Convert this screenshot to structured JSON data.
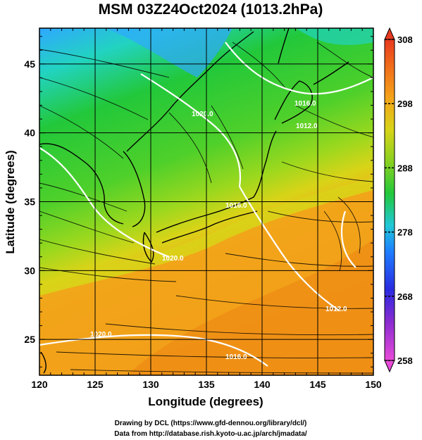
{
  "title": "MSM 03Z24Oct2024 (1013.2hPa)",
  "xlabel": "Longitude (degrees)",
  "ylabel": "Latitude  (degrees)",
  "x_ticks": [
    120,
    125,
    130,
    135,
    140,
    145,
    150
  ],
  "y_ticks": [
    25,
    30,
    35,
    40,
    45
  ],
  "x_range": [
    120,
    150
  ],
  "y_range": [
    22.4,
    47.6
  ],
  "colorbar": {
    "min": 258,
    "max": 308,
    "ticks": [
      258,
      268,
      278,
      288,
      298,
      308
    ]
  },
  "colors": {
    "cold_blue": "#2fa8ff",
    "cyan": "#22d3c0",
    "green": "#22c83a",
    "yellow_green": "#9ad81e",
    "yellow": "#d8d418",
    "orange": "#f4a21a",
    "deep_orange": "#ee8a14"
  },
  "contour_labels": [
    "1016.0",
    "1012.0",
    "1020.0",
    "1016.0",
    "1020.0",
    "1012.0",
    "1020.0",
    "1016.0"
  ],
  "credits": {
    "line1": "Drawing by DCL (https://www.gfd-dennou.org/library/dcl/)",
    "line2": "Data from http://database.rish.kyoto-u.ac.jp/arch/jmadata/"
  }
}
